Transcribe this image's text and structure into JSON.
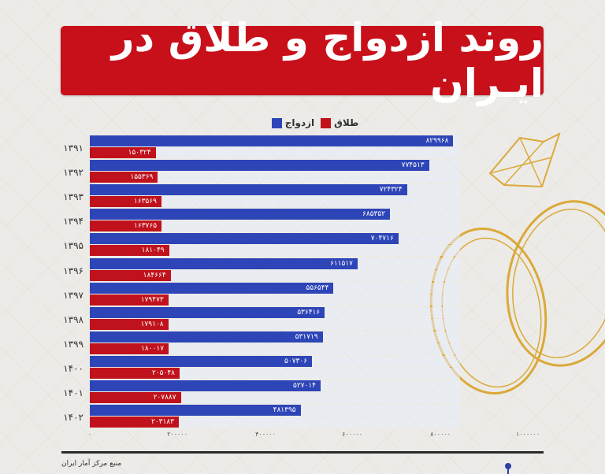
{
  "title": "روند ازدواج و طلاق در ایـران",
  "legend": {
    "marriage_label": "ازدواج",
    "divorce_label": "طلاق",
    "marriage_color": "#2e45b8",
    "divorce_color": "#c0121c"
  },
  "rows": [
    {
      "year": "۱۳۹۱",
      "marriage": "۸۲۹۹۶۸",
      "divorce": "۱۵۰۳۲۴"
    },
    {
      "year": "۱۳۹۲",
      "marriage": "۷۷۴۵۱۳",
      "divorce": "۱۵۵۳۶۹"
    },
    {
      "year": "۱۳۹۳",
      "marriage": "۷۲۴۳۲۴",
      "divorce": "۱۶۳۵۶۹"
    },
    {
      "year": "۱۳۹۴",
      "marriage": "۶۸۵۳۵۲",
      "divorce": "۱۶۳۷۶۵"
    },
    {
      "year": "۱۳۹۵",
      "marriage": "۷۰۴۷۱۶",
      "divorce": "۱۸۱۰۴۹"
    },
    {
      "year": "۱۳۹۶",
      "marriage": "۶۱۱۵۱۷",
      "divorce": "۱۸۴۶۶۴"
    },
    {
      "year": "۱۳۹۷",
      "marriage": "۵۵۶۵۴۴",
      "divorce": "۱۷۹۴۷۳"
    },
    {
      "year": "۱۳۹۸",
      "marriage": "۵۳۶۴۱۶",
      "divorce": "۱۷۹۱۰۸"
    },
    {
      "year": "۱۳۹۹",
      "marriage": "۵۳۱۷۱۹",
      "divorce": "۱۸۰۰۱۷"
    },
    {
      "year": "۱۴۰۰",
      "marriage": "۵۰۷۳۰۶",
      "divorce": "۲۰۵۰۴۸"
    },
    {
      "year": "۱۴۰۱",
      "marriage": "۵۲۷۰۱۴",
      "divorce": "۲۰۷۸۸۷"
    },
    {
      "year": "۱۴۰۲",
      "marriage": "۴۸۱۳۹۵",
      "divorce": "۲۰۳۱۸۳"
    }
  ],
  "axis_ticks": [
    "۰",
    "۲۰۰۰۰۰",
    "۴۰۰۰۰۰",
    "۶۰۰۰۰۰",
    "۸۰۰۰۰۰",
    "۱۰۰۰۰۰۰"
  ],
  "source": "منبع مرکز آمار ایران",
  "chart_data": {
    "type": "bar",
    "orientation": "horizontal",
    "title": "روند ازدواج و طلاق در ایران",
    "categories": [
      "1391",
      "1392",
      "1393",
      "1394",
      "1395",
      "1396",
      "1397",
      "1398",
      "1399",
      "1400",
      "1401",
      "1402"
    ],
    "series": [
      {
        "name": "ازدواج",
        "color": "#2e45b8",
        "values": [
          829968,
          774513,
          724324,
          685352,
          704716,
          611517,
          556544,
          536416,
          531719,
          507306,
          527014,
          481395
        ]
      },
      {
        "name": "طلاق",
        "color": "#c0121c",
        "values": [
          150324,
          155369,
          163569,
          163765,
          181049,
          184664,
          179473,
          179108,
          180017,
          205048,
          207887,
          203183
        ]
      }
    ],
    "xlabel": "",
    "ylabel": "",
    "xlim": [
      0,
      1000000
    ],
    "x_ticks": [
      0,
      200000,
      400000,
      600000,
      800000,
      1000000
    ],
    "legend_position": "top",
    "grid": false,
    "source": "منبع مرکز آمار ایران"
  }
}
